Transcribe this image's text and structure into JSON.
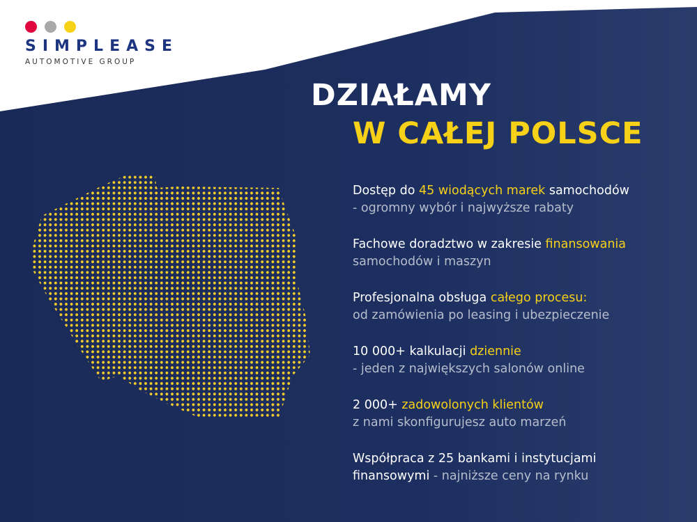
{
  "logo": {
    "brand": "SIMPLEASE",
    "tagline": "AUTOMOTIVE GROUP",
    "dot_colors": [
      "#e0073f",
      "#a9a9a9",
      "#f7d117"
    ]
  },
  "headline": {
    "line1": "DZIAŁAMY",
    "line2": "W CAŁEJ POLSCE"
  },
  "colors": {
    "navy": "#1b2b5a",
    "accent": "#f7d117",
    "map_dots": "#f2cc2a"
  },
  "map": {
    "icon": "poland-dotted-map"
  },
  "features": [
    {
      "a": "Dostęp do ",
      "hl": "45 wiodących marek",
      "b": " samochodów",
      "c": "",
      "line2": "- ogromny wybór i najwyższe rabaty"
    },
    {
      "a": "Fachowe doradztwo w zakresie ",
      "hl": "finansowania",
      "b": "",
      "c": "",
      "line2": "samochodów i maszyn"
    },
    {
      "a": "Profesjonalna obsługa ",
      "hl": "całego procesu:",
      "b": "",
      "c": "",
      "line2": "od zamówienia po leasing i ubezpieczenie"
    },
    {
      "a": "10 000+ kalkulacji ",
      "hl": "dziennie",
      "b": "",
      "c": "",
      "line2": "- jeden z największych salonów online"
    },
    {
      "a": "2 000+ ",
      "hl": "zadowolonych klientów",
      "b": "",
      "c": "",
      "line2": "z nami skonfigurujesz auto marzeń"
    },
    {
      "a": "Współpraca z 25 bankami i instytucjami",
      "hl": "",
      "b": "",
      "c": "finansowymi",
      "line2": " - najniższe ceny na rynku"
    }
  ]
}
